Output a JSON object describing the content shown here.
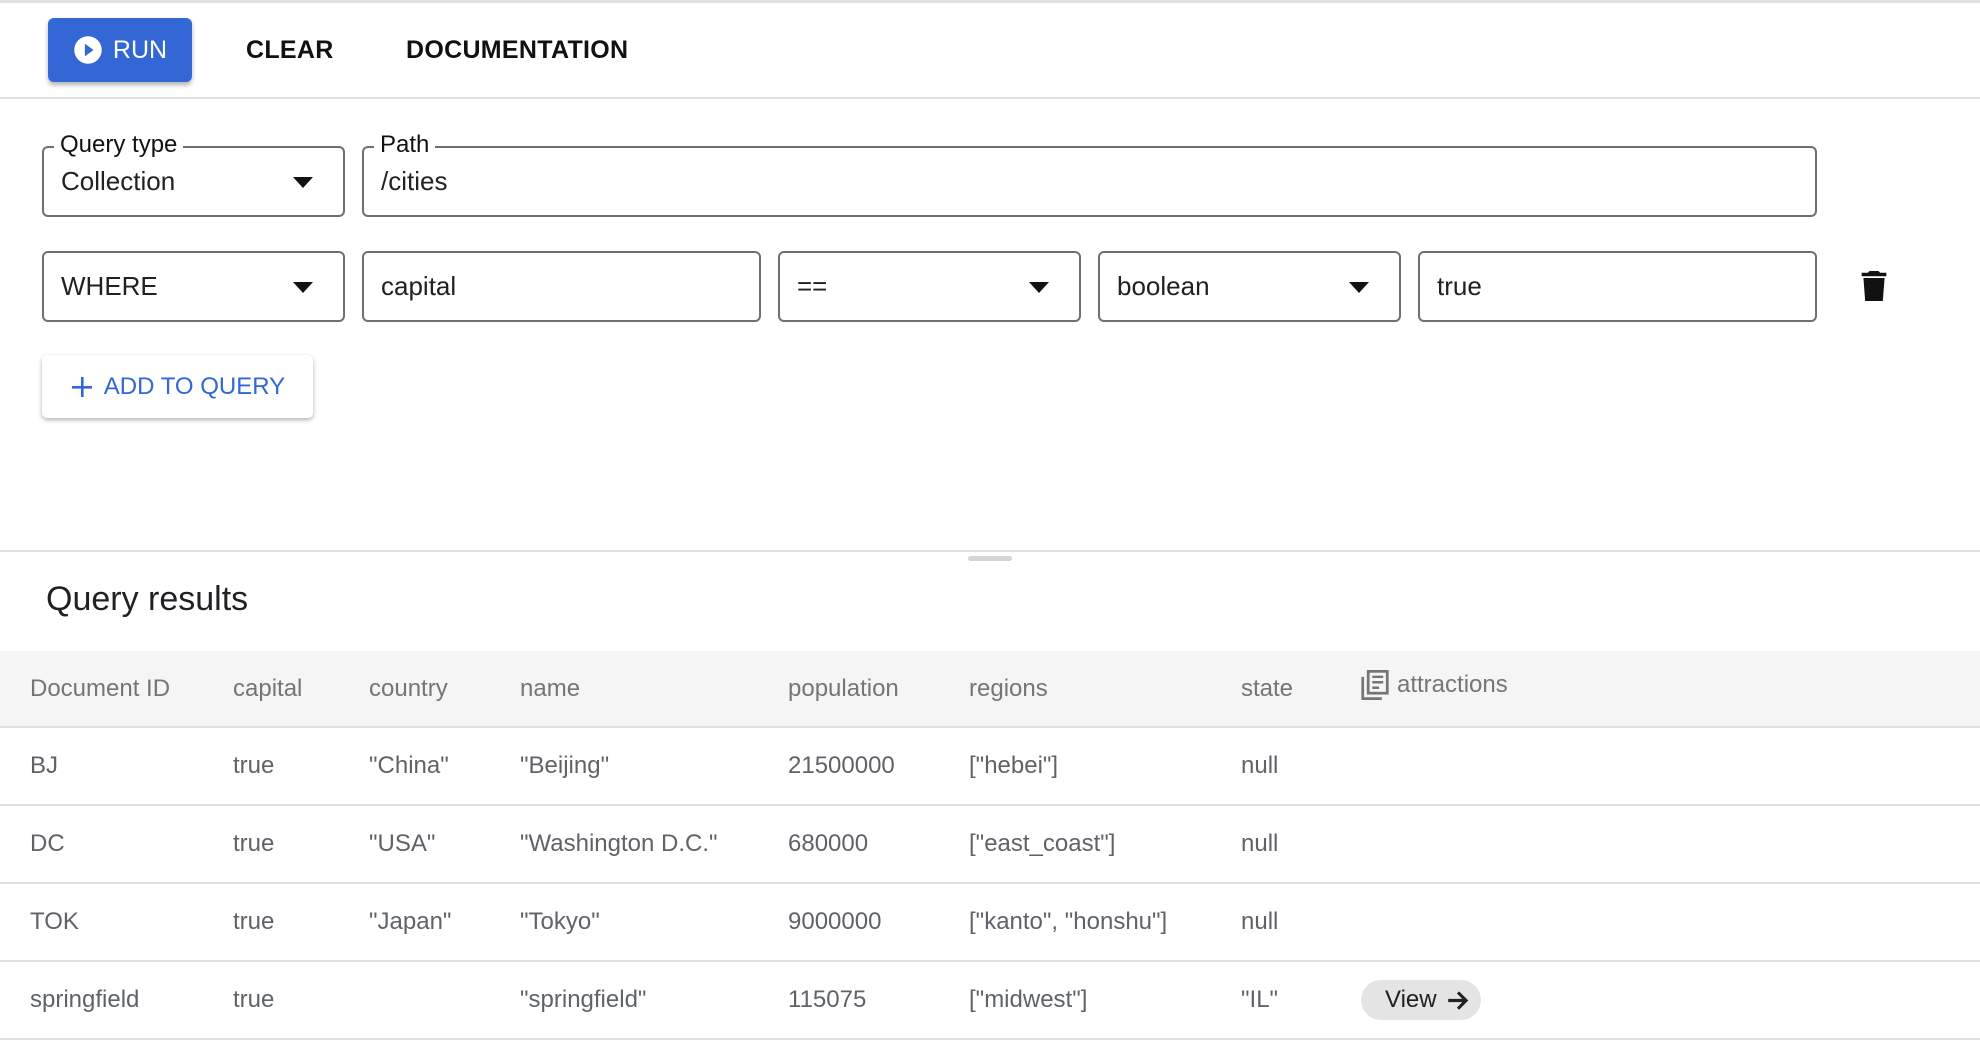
{
  "toolbar": {
    "run_label": "RUN",
    "clear_label": "CLEAR",
    "documentation_label": "DOCUMENTATION"
  },
  "query": {
    "query_type_label": "Query type",
    "query_type_value": "Collection",
    "path_label": "Path",
    "path_value": "/cities",
    "clause": {
      "type": "WHERE",
      "field": "capital",
      "operator": "==",
      "value_type": "boolean",
      "value": "true"
    },
    "add_label": "ADD TO QUERY"
  },
  "results": {
    "title": "Query results",
    "columns": [
      "Document ID",
      "capital",
      "country",
      "name",
      "population",
      "regions",
      "state",
      "attractions"
    ],
    "rows": [
      [
        "BJ",
        "true",
        "\"China\"",
        "\"Beijing\"",
        "21500000",
        "[\"hebei\"]",
        "null",
        ""
      ],
      [
        "DC",
        "true",
        "\"USA\"",
        "\"Washington D.C.\"",
        "680000",
        "[\"east_coast\"]",
        "null",
        ""
      ],
      [
        "TOK",
        "true",
        "\"Japan\"",
        "\"Tokyo\"",
        "9000000",
        "[\"kanto\", \"honshu\"]",
        "null",
        ""
      ],
      [
        "springfield",
        "true",
        "",
        "\"springfield\"",
        "115075",
        "[\"midwest\"]",
        "\"IL\"",
        "View"
      ]
    ]
  },
  "colors": {
    "accent": "#3367d6"
  }
}
